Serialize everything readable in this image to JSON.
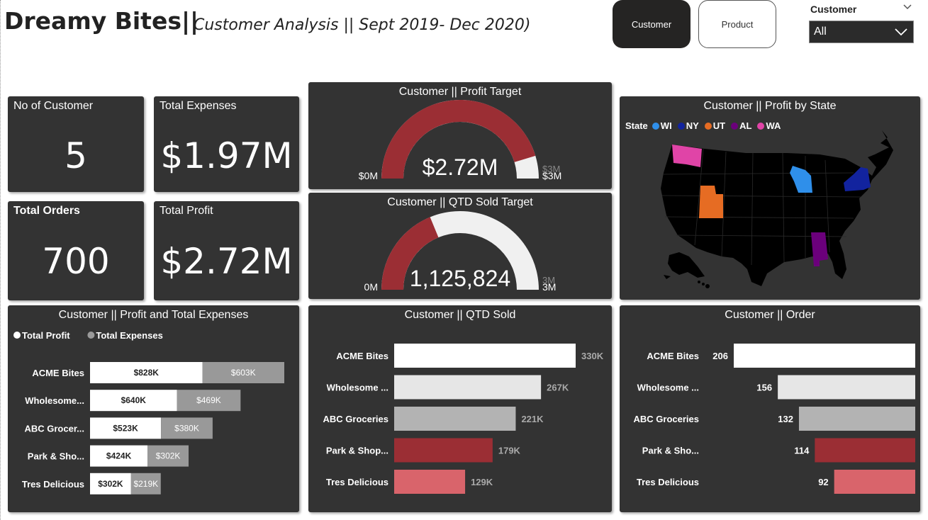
{
  "header": {
    "brand": "Dreamy Bites||",
    "subtitle": "Customer Analysis || Sept 2019- Dec 2020)"
  },
  "nav": {
    "customer_label": "Customer",
    "product_label": "Product"
  },
  "slicer": {
    "title": "Customer",
    "value": "All"
  },
  "cards": {
    "customers": {
      "label": "No of Customer",
      "value": "5"
    },
    "expenses": {
      "label": "Total Expenses",
      "value": "$1.97M"
    },
    "orders": {
      "label": "Total Orders",
      "value": "700"
    },
    "profit": {
      "label": "Total Profit",
      "value": "$2.72M"
    }
  },
  "colors": {
    "panel": "#333333",
    "dark_red": "#9b2e34",
    "light_red": "#d9646b",
    "white": "#ffffff",
    "light_gray": "#e6e6e6",
    "gray": "#b3b3b3",
    "expense_gray": "#999999",
    "gauge_bg": "#f0f0f0"
  },
  "map": {
    "title": "Customer || Profit by State",
    "legend_label": "State",
    "states": [
      {
        "code": "WI",
        "color": "#2f8fea"
      },
      {
        "code": "NY",
        "color": "#12239e"
      },
      {
        "code": "UT",
        "color": "#e66c23"
      },
      {
        "code": "AL",
        "color": "#6b007b"
      },
      {
        "code": "WA",
        "color": "#e044a7"
      }
    ]
  },
  "chart_data": [
    {
      "type": "gauge",
      "title": "Customer || Profit Target",
      "value": 2.72,
      "value_label": "$2.72M",
      "min": 0,
      "max": 3,
      "target": 3,
      "min_label": "$0M",
      "max_label": "$3M",
      "target_label": "$3M"
    },
    {
      "type": "gauge",
      "title": "Customer || QTD Sold Target",
      "value": 1125824,
      "value_label": "1,125,824",
      "min": 0,
      "max": 3000000,
      "target": 3000000,
      "min_label": "0M",
      "max_label": "3M",
      "target_label": "3M"
    },
    {
      "type": "bar",
      "orientation": "horizontal",
      "stacked": true,
      "title": "Customer || Profit and Total Expenses",
      "categories": [
        "ACME Bites",
        "Wholesome...",
        "ABC Grocer...",
        "Park & Sho...",
        "Tres Delicious"
      ],
      "series": [
        {
          "name": "Total Profit",
          "values": [
            828,
            640,
            523,
            424,
            302
          ],
          "labels": [
            "$828K",
            "$640K",
            "$523K",
            "$424K",
            "$302K"
          ],
          "color": "#ffffff"
        },
        {
          "name": "Total Expenses",
          "values": [
            603,
            469,
            380,
            302,
            219
          ],
          "labels": [
            "$603K",
            "$469K",
            "$380K",
            "$302K",
            "$219K"
          ],
          "color": "#999999"
        }
      ]
    },
    {
      "type": "bar",
      "orientation": "horizontal",
      "title": "Customer || QTD Sold",
      "categories": [
        "ACME Bites",
        "Wholesome ...",
        "ABC Groceries",
        "Park & Shop...",
        "Tres Delicious"
      ],
      "values": [
        330,
        267,
        221,
        179,
        129
      ],
      "labels": [
        "330K",
        "267K",
        "221K",
        "179K",
        "129K"
      ],
      "colors": [
        "#ffffff",
        "#e6e6e6",
        "#b3b3b3",
        "#9b2e34",
        "#d9646b"
      ]
    },
    {
      "type": "bar",
      "orientation": "horizontal",
      "direction": "right-to-left",
      "title": "Customer || Order",
      "categories": [
        "ACME Bites",
        "Wholesome ...",
        "ABC Groceries",
        "Park & Sho...",
        "Tres Delicious"
      ],
      "values": [
        206,
        156,
        132,
        114,
        92
      ],
      "labels": [
        "206",
        "156",
        "132",
        "114",
        "92"
      ],
      "colors": [
        "#ffffff",
        "#e6e6e6",
        "#b3b3b3",
        "#9b2e34",
        "#d9646b"
      ]
    }
  ]
}
